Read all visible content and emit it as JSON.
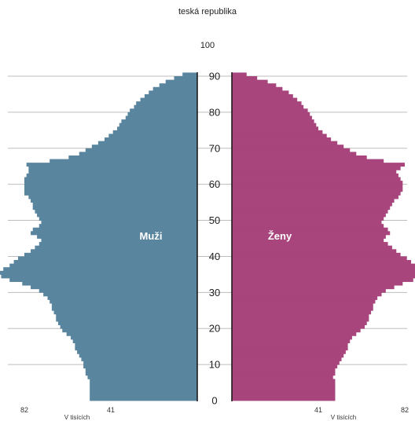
{
  "chart_data": {
    "type": "bar",
    "orientation": "horizontal-population-pyramid",
    "title": "teská republika",
    "subtitle": "100",
    "y_axis": {
      "label": "",
      "ticks": [
        0,
        10,
        20,
        30,
        40,
        50,
        60,
        70,
        80,
        90
      ],
      "range": [
        0,
        90
      ]
    },
    "x_axis": {
      "label": "V tisících",
      "ticks": [
        82,
        41,
        0
      ],
      "range": [
        0,
        98
      ]
    },
    "series": [
      {
        "name": "Muži",
        "side": "left",
        "color": "#5a859f",
        "values": [
          [
            0,
            51
          ],
          [
            5,
            51
          ],
          [
            6,
            52
          ],
          [
            7,
            53
          ],
          [
            8,
            53
          ],
          [
            9,
            54
          ],
          [
            10,
            54
          ],
          [
            11,
            55
          ],
          [
            12,
            56
          ],
          [
            13,
            57
          ],
          [
            14,
            58
          ],
          [
            15,
            58
          ],
          [
            16,
            59
          ],
          [
            17,
            60
          ],
          [
            18,
            62
          ],
          [
            19,
            64
          ],
          [
            20,
            65
          ],
          [
            21,
            66
          ],
          [
            22,
            67
          ],
          [
            23,
            67
          ],
          [
            24,
            68
          ],
          [
            25,
            69
          ],
          [
            26,
            69
          ],
          [
            27,
            70
          ],
          [
            28,
            71
          ],
          [
            29,
            73
          ],
          [
            30,
            75
          ],
          [
            31,
            79
          ],
          [
            32,
            83
          ],
          [
            33,
            89
          ],
          [
            34,
            93
          ],
          [
            35,
            95
          ],
          [
            36,
            92
          ],
          [
            37,
            89
          ],
          [
            38,
            87
          ],
          [
            39,
            85
          ],
          [
            40,
            82
          ],
          [
            41,
            79
          ],
          [
            42,
            77
          ],
          [
            43,
            75
          ],
          [
            44,
            74
          ],
          [
            45,
            76
          ],
          [
            46,
            79
          ],
          [
            47,
            78
          ],
          [
            48,
            75
          ],
          [
            49,
            74
          ],
          [
            50,
            75
          ],
          [
            51,
            76
          ],
          [
            52,
            77
          ],
          [
            53,
            78
          ],
          [
            54,
            78
          ],
          [
            55,
            79
          ],
          [
            56,
            80
          ],
          [
            57,
            82
          ],
          [
            58,
            82
          ],
          [
            59,
            82
          ],
          [
            60,
            82
          ],
          [
            61,
            82
          ],
          [
            62,
            81
          ],
          [
            63,
            80
          ],
          [
            64,
            80
          ],
          [
            65,
            81
          ],
          [
            66,
            70
          ],
          [
            67,
            61
          ],
          [
            68,
            56
          ],
          [
            69,
            53
          ],
          [
            70,
            50
          ],
          [
            71,
            47
          ],
          [
            72,
            44
          ],
          [
            73,
            42
          ],
          [
            74,
            40
          ],
          [
            75,
            38
          ],
          [
            76,
            37
          ],
          [
            77,
            36
          ],
          [
            78,
            34
          ],
          [
            79,
            33
          ],
          [
            80,
            32
          ],
          [
            81,
            30
          ],
          [
            82,
            29
          ],
          [
            83,
            27
          ],
          [
            84,
            25
          ],
          [
            85,
            23
          ],
          [
            86,
            21
          ],
          [
            87,
            18
          ],
          [
            88,
            15
          ],
          [
            89,
            11
          ],
          [
            90,
            7
          ]
        ]
      },
      {
        "name": "Ženy",
        "side": "right",
        "color": "#a8457c",
        "values": [
          [
            0,
            49
          ],
          [
            5,
            49
          ],
          [
            6,
            48
          ],
          [
            7,
            49
          ],
          [
            8,
            49
          ],
          [
            9,
            50
          ],
          [
            10,
            51
          ],
          [
            11,
            52
          ],
          [
            12,
            53
          ],
          [
            13,
            54
          ],
          [
            14,
            55
          ],
          [
            15,
            55
          ],
          [
            16,
            56
          ],
          [
            17,
            57
          ],
          [
            18,
            59
          ],
          [
            19,
            61
          ],
          [
            20,
            63
          ],
          [
            21,
            64
          ],
          [
            22,
            65
          ],
          [
            23,
            65
          ],
          [
            24,
            66
          ],
          [
            25,
            67
          ],
          [
            26,
            67
          ],
          [
            27,
            68
          ],
          [
            28,
            69
          ],
          [
            29,
            71
          ],
          [
            30,
            73
          ],
          [
            31,
            77
          ],
          [
            32,
            81
          ],
          [
            33,
            86
          ],
          [
            34,
            90
          ],
          [
            35,
            92
          ],
          [
            36,
            90
          ],
          [
            37,
            87
          ],
          [
            38,
            85
          ],
          [
            39,
            83
          ],
          [
            40,
            80
          ],
          [
            41,
            78
          ],
          [
            42,
            76
          ],
          [
            43,
            74
          ],
          [
            44,
            72
          ],
          [
            45,
            73
          ],
          [
            46,
            75
          ],
          [
            47,
            74
          ],
          [
            48,
            72
          ],
          [
            49,
            71
          ],
          [
            50,
            72
          ],
          [
            51,
            73
          ],
          [
            52,
            74
          ],
          [
            53,
            75
          ],
          [
            54,
            76
          ],
          [
            55,
            77
          ],
          [
            56,
            79
          ],
          [
            57,
            80
          ],
          [
            58,
            81
          ],
          [
            59,
            81
          ],
          [
            60,
            81
          ],
          [
            61,
            80
          ],
          [
            62,
            79
          ],
          [
            63,
            78
          ],
          [
            64,
            80
          ],
          [
            65,
            82
          ],
          [
            66,
            72
          ],
          [
            67,
            64
          ],
          [
            68,
            59
          ],
          [
            69,
            56
          ],
          [
            70,
            53
          ],
          [
            71,
            50
          ],
          [
            72,
            47
          ],
          [
            73,
            45
          ],
          [
            74,
            43
          ],
          [
            75,
            41
          ],
          [
            76,
            40
          ],
          [
            77,
            39
          ],
          [
            78,
            38
          ],
          [
            79,
            37
          ],
          [
            80,
            36
          ],
          [
            81,
            34
          ],
          [
            82,
            33
          ],
          [
            83,
            31
          ],
          [
            84,
            29
          ],
          [
            85,
            27
          ],
          [
            86,
            24
          ],
          [
            87,
            21
          ],
          [
            88,
            17
          ],
          [
            89,
            12
          ],
          [
            90,
            7
          ]
        ]
      }
    ],
    "gridlines": "horizontal every 10 years",
    "annotations": [
      "Muži",
      "Ženy"
    ]
  }
}
